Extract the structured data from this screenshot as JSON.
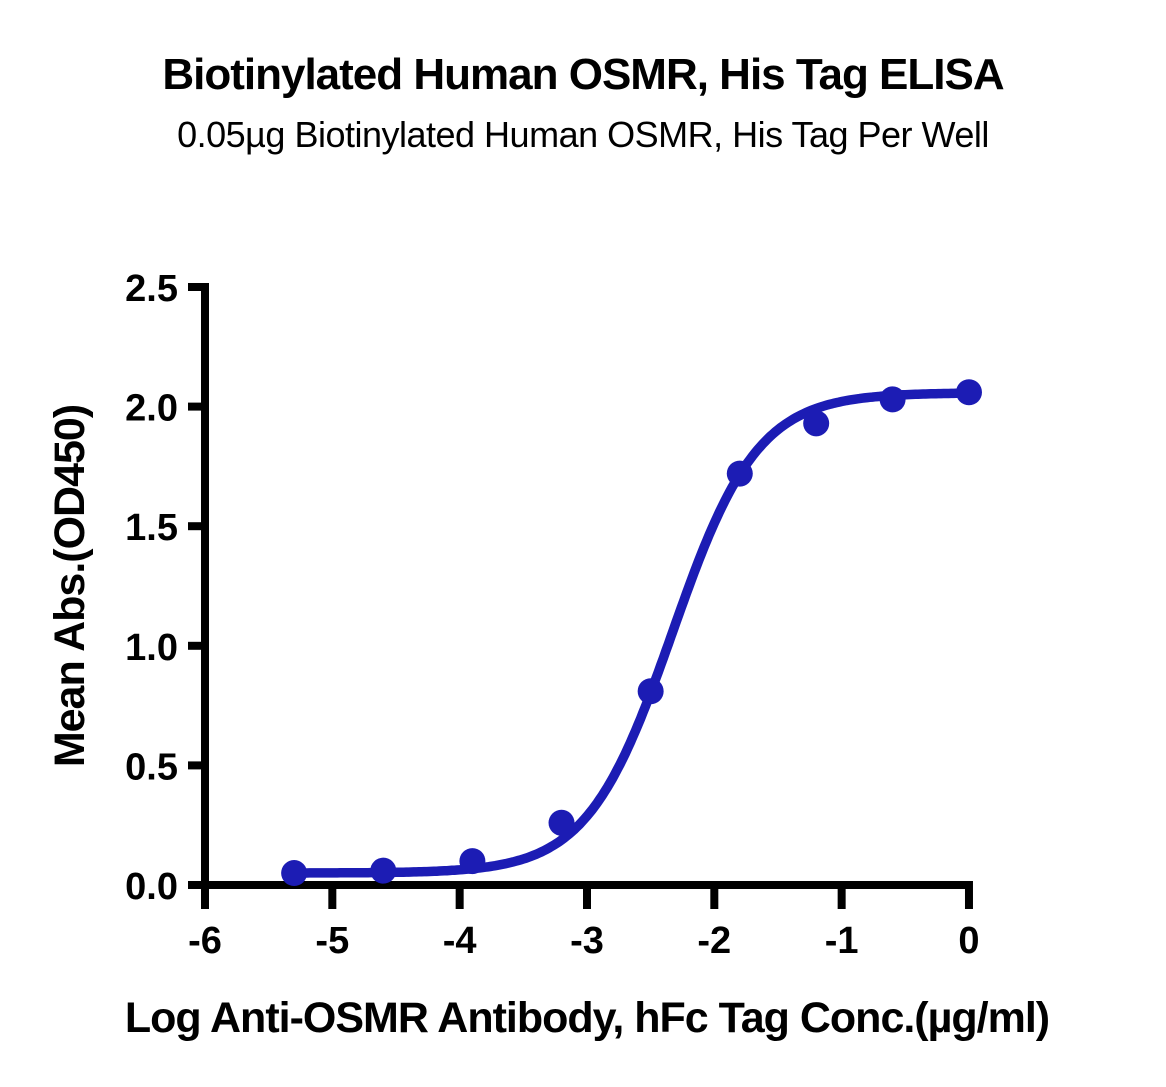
{
  "header": {
    "title": "Biotinylated Human OSMR, His Tag ELISA",
    "subtitle": "0.05µg Biotinylated Human OSMR, His Tag Per Well"
  },
  "chart_data": {
    "type": "scatter",
    "subtype": "sigmoidal-dose-response-with-fit-curve",
    "title": "Biotinylated Human OSMR, His Tag ELISA",
    "subtitle": "0.05µg Biotinylated Human OSMR, His Tag Per Well",
    "xlabel": "Log Anti-OSMR Antibody, hFc Tag Conc.(µg/ml)",
    "ylabel": "Mean Abs.(OD450)",
    "x": [
      -5.3,
      -4.6,
      -3.9,
      -3.2,
      -2.5,
      -1.8,
      -1.2,
      -0.6,
      0
    ],
    "y": [
      0.05,
      0.06,
      0.1,
      0.26,
      0.81,
      1.72,
      1.93,
      2.03,
      2.06
    ],
    "xlim": [
      -6,
      0
    ],
    "ylim": [
      0,
      2.5
    ],
    "xticks": [
      -6,
      -5,
      -4,
      -3,
      -2,
      -1,
      0
    ],
    "xtick_labels": [
      "-6",
      "-5",
      "-4",
      "-3",
      "-2",
      "-1",
      "0"
    ],
    "yticks": [
      0,
      0.5,
      1.0,
      1.5,
      2.0,
      2.5
    ],
    "ytick_labels": [
      "0.0",
      "0.5",
      "1.0",
      "1.5",
      "2.0",
      "2.5"
    ],
    "curve_fit": {
      "model": "4PL",
      "bottom": 0.05,
      "top": 2.058,
      "logEC50": -2.33,
      "hill": 1.3
    },
    "series_color": "#1c1cb4",
    "axis_color": "#000000",
    "grid": false,
    "legend": null
  }
}
